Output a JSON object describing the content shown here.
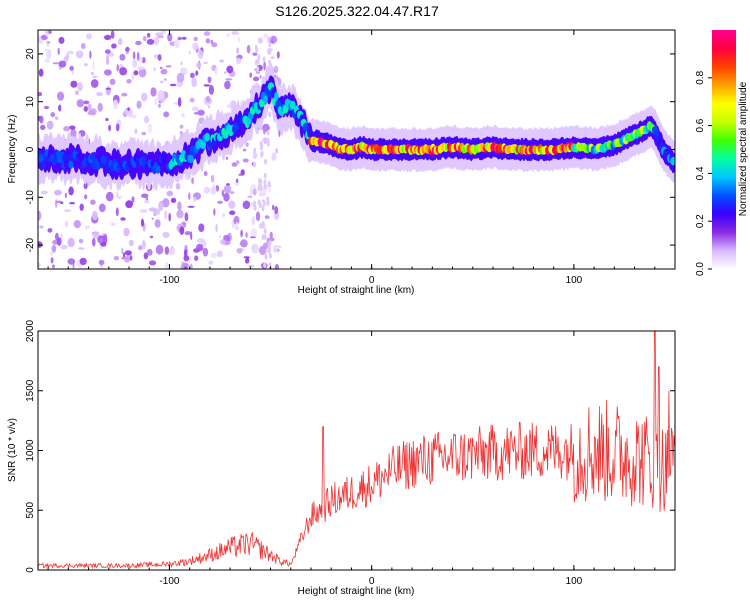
{
  "figure": {
    "title": "S126.2025.322.04.47.R17"
  },
  "chart_data": [
    {
      "type": "heatmap",
      "xlabel": "Height of straight line (km)",
      "ylabel": "Frequency (Hz)",
      "xlim": [
        -165,
        150
      ],
      "ylim": [
        -25,
        25
      ],
      "xticks": [
        -100,
        0,
        100
      ],
      "yticks": [
        -20,
        -10,
        0,
        10,
        20
      ],
      "grid": false,
      "ridge": {
        "x": [
          -165,
          -150,
          -140,
          -130,
          -120,
          -110,
          -100,
          -90,
          -80,
          -70,
          -60,
          -55,
          -50,
          -45,
          -40,
          -38,
          -35,
          -32,
          -30,
          -25,
          -20,
          -15,
          -10,
          -5,
          0,
          10,
          20,
          30,
          40,
          50,
          60,
          70,
          80,
          90,
          100,
          110,
          115,
          120,
          125,
          130,
          135,
          138,
          140,
          143,
          146,
          150
        ],
        "y": [
          -2,
          -2,
          -2,
          -3,
          -3,
          -3,
          -3,
          -1,
          2,
          4,
          7,
          10,
          13,
          8,
          9,
          8,
          6,
          4,
          2,
          1.5,
          1,
          0,
          0,
          0.5,
          0,
          0,
          0,
          0,
          0.5,
          0,
          0.5,
          0,
          0,
          0,
          0.5,
          0,
          0.5,
          1,
          2,
          3,
          4,
          5,
          4,
          1,
          -1,
          -3
        ]
      },
      "colorbar": {
        "label": "Normalized spectral amplitude",
        "range": [
          0,
          1
        ],
        "ticks": [
          "0.0",
          "0.2",
          "0.4",
          "0.6",
          "0.8"
        ],
        "colors": [
          "#ffffff",
          "#d8b8ff",
          "#8a2be2",
          "#3a00ff",
          "#0050ff",
          "#00c8ff",
          "#00ffa0",
          "#40ff00",
          "#c8ff00",
          "#ffff00",
          "#ffa000",
          "#ff4000",
          "#ff0040",
          "#ff0090"
        ]
      }
    },
    {
      "type": "line",
      "xlabel": "Height of straight line (km)",
      "ylabel": "SNR (10 * v/v)",
      "xlim": [
        -165,
        150
      ],
      "ylim": [
        0,
        2000
      ],
      "xticks": [
        -100,
        0,
        100
      ],
      "yticks": [
        0,
        500,
        1000,
        1500,
        2000
      ],
      "grid": false,
      "color": "#ee3333",
      "envelope": {
        "x": [
          -165,
          -120,
          -100,
          -90,
          -80,
          -70,
          -60,
          -50,
          -45,
          -40,
          -35,
          -30,
          -25,
          -20,
          -10,
          0,
          10,
          20,
          30,
          40,
          50,
          60,
          70,
          80,
          90,
          100,
          110,
          120,
          130,
          140,
          145,
          150
        ],
        "y": [
          30,
          30,
          40,
          60,
          100,
          150,
          180,
          100,
          60,
          40,
          250,
          450,
          500,
          580,
          650,
          720,
          830,
          900,
          930,
          950,
          960,
          980,
          990,
          1000,
          1000,
          1000,
          1000,
          980,
          950,
          900,
          850,
          900
        ]
      },
      "spikes": [
        {
          "x": -24,
          "y": 1200
        },
        {
          "x": 140,
          "y": 2000
        },
        {
          "x": 142,
          "y": 1700
        },
        {
          "x": 147,
          "y": 1500
        }
      ]
    }
  ]
}
